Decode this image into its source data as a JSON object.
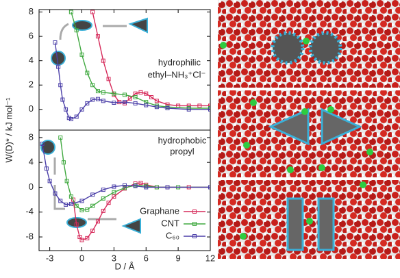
{
  "chart_data": [
    {
      "type": "line",
      "ylabel": "W(D)* / kJ mol⁻¹",
      "annotations": [
        "hydrophilic",
        "ethyl–NH₃⁺Cl⁻"
      ],
      "xlim": [
        -4,
        12
      ],
      "ylim": [
        -1.7,
        8.2
      ],
      "yticks": [
        0,
        2,
        4,
        6,
        8
      ],
      "series": [
        {
          "color": "#d62a5a",
          "x": [
            1,
            1.5,
            2,
            2.5,
            3,
            3.5,
            4,
            4.5,
            5,
            5.5,
            6,
            6.5,
            7,
            8,
            9,
            10,
            11,
            12
          ],
          "values": [
            8,
            6,
            4,
            2.5,
            1.2,
            0.6,
            0.5,
            0.9,
            1.3,
            1.4,
            1.3,
            1.0,
            0.7,
            0.4,
            0.3,
            0.3,
            0.3,
            0.3
          ]
        },
        {
          "color": "#3fa83f",
          "x": [
            -1,
            -0.5,
            0,
            0.5,
            1,
            1.5,
            2,
            3,
            4,
            5,
            6,
            7,
            8,
            10,
            12
          ],
          "values": [
            8,
            6.5,
            4.5,
            3,
            2,
            1.5,
            1.4,
            1.3,
            1.2,
            1.0,
            0.6,
            0.3,
            0.2,
            0.1,
            0.1
          ]
        },
        {
          "color": "#4b3fa8",
          "x": [
            -2.5,
            -2.2,
            -2,
            -1.8,
            -1.5,
            -1.2,
            -1,
            -0.5,
            0,
            0.5,
            1,
            1.5,
            2,
            3,
            4,
            5,
            6,
            7,
            8,
            10,
            12
          ],
          "values": [
            5.5,
            3.5,
            2,
            0.8,
            0,
            -0.7,
            -0.8,
            -0.6,
            0,
            0.5,
            0.8,
            0.85,
            0.7,
            0.55,
            0.6,
            0.5,
            0.35,
            0.2,
            0.1,
            0,
            0
          ]
        }
      ]
    },
    {
      "type": "line",
      "xlabel": "D / Å",
      "annotations": [
        "hydrophobic",
        "propyl"
      ],
      "xlim": [
        -4,
        12
      ],
      "xticks": [
        -3,
        0,
        3,
        6,
        9,
        12
      ],
      "ylim": [
        -10.2,
        9.2
      ],
      "yticks": [
        -8,
        -4,
        0,
        4,
        8
      ],
      "legend": "lower right",
      "series": [
        {
          "name": "Graphane",
          "color": "#d62a5a",
          "x": [
            -0.8,
            -0.5,
            -0.2,
            0,
            0.5,
            1,
            1.5,
            2,
            2.5,
            3,
            4,
            5,
            5.5,
            6,
            7,
            8,
            10,
            12
          ],
          "values": [
            -2,
            -6,
            -8,
            -8.5,
            -8.2,
            -7,
            -5.5,
            -3.8,
            -2.5,
            -1.5,
            -0.2,
            0.6,
            0.7,
            0.4,
            0,
            0,
            0,
            0
          ]
        },
        {
          "name": "CNT",
          "color": "#3fa83f",
          "x": [
            -2,
            -1.7,
            -1.4,
            -1,
            -0.5,
            0,
            0.5,
            1,
            2,
            3,
            4,
            5,
            6,
            7,
            9,
            12
          ],
          "values": [
            8,
            4,
            1,
            -1.5,
            -3,
            -3.7,
            -3.6,
            -3,
            -1.8,
            -0.8,
            -0.1,
            0.3,
            0.2,
            0,
            0,
            0
          ]
        },
        {
          "name": "C₆₀",
          "color": "#4b3fa8",
          "x": [
            -3.7,
            -3.3,
            -3,
            -2.5,
            -2,
            -1.5,
            -1,
            0,
            1,
            2,
            3,
            4,
            5,
            6,
            8,
            12
          ],
          "values": [
            7,
            3,
            1,
            -1,
            -2.2,
            -2.8,
            -2.7,
            -2.2,
            -1.2,
            -0.4,
            0.1,
            0.3,
            0.2,
            0,
            0,
            0
          ]
        }
      ]
    }
  ]
}
